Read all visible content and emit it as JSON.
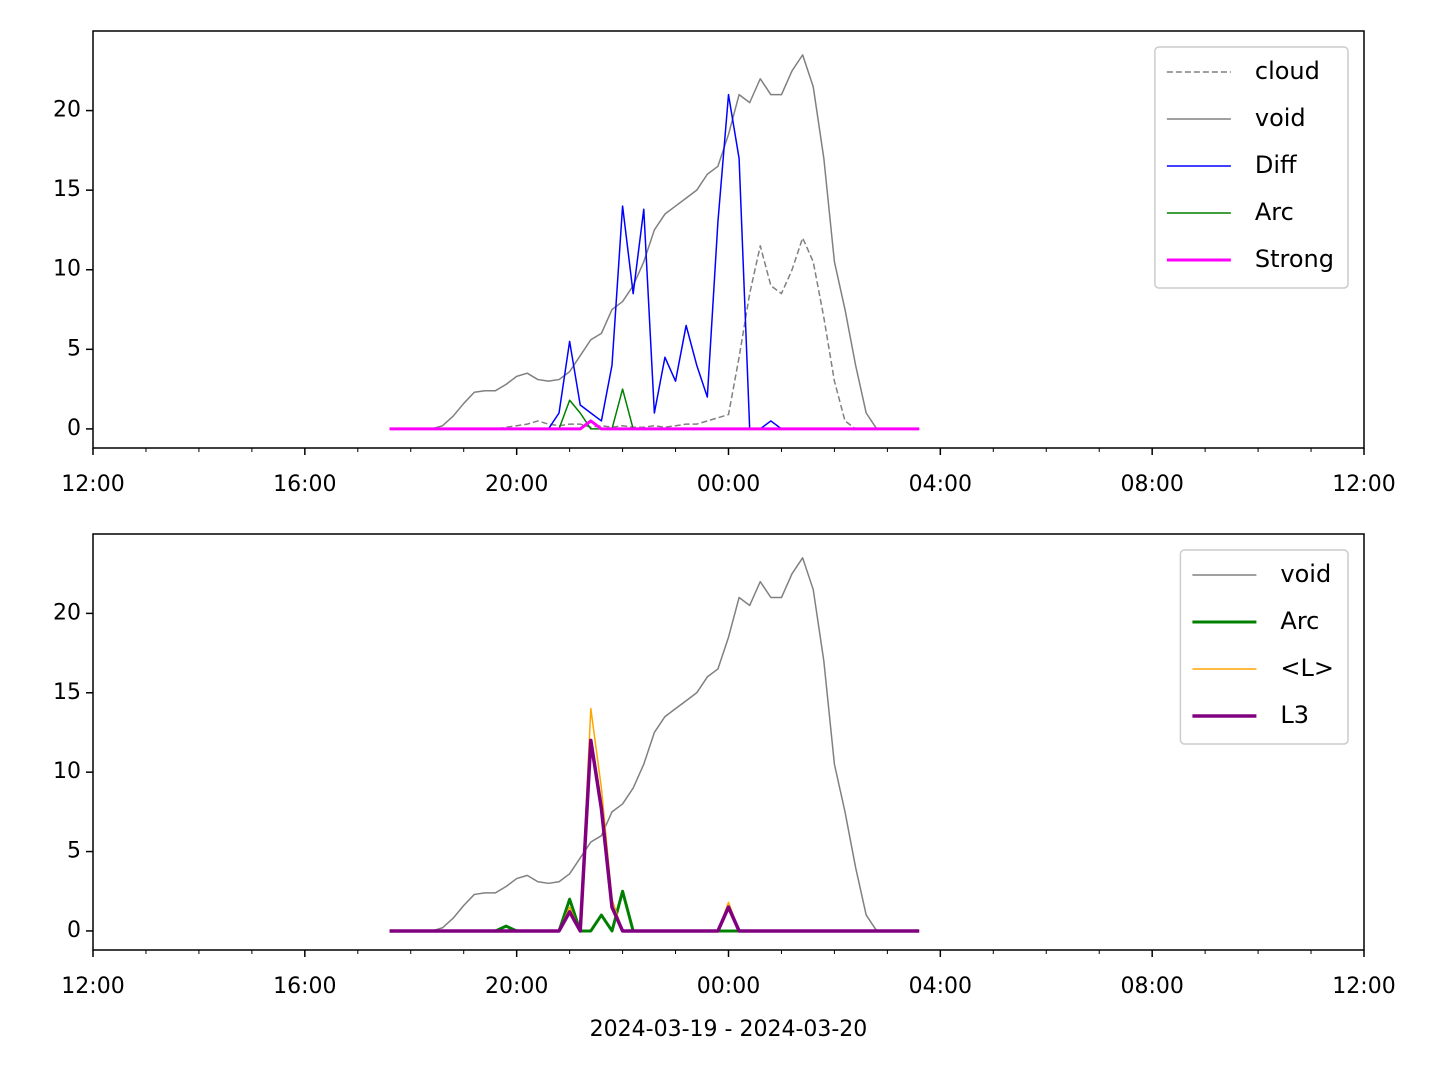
{
  "chart_data": [
    {
      "type": "line",
      "legend": "upper right",
      "grid": false,
      "x": [
        5.6,
        5.8,
        6.0,
        6.2,
        6.4,
        6.6,
        6.8,
        7.0,
        7.2,
        7.4,
        7.6,
        7.8,
        8.0,
        8.2,
        8.4,
        8.6,
        8.8,
        9.0,
        9.2,
        9.4,
        9.6,
        9.8,
        10.0,
        10.2,
        10.4,
        10.6,
        10.8,
        11.0,
        11.2,
        11.4,
        11.6,
        11.8,
        12.0,
        12.2,
        12.4,
        12.6,
        12.8,
        13.0,
        13.2,
        13.4,
        13.6,
        13.8,
        14.0,
        14.2,
        14.4,
        14.6,
        14.8,
        15.0,
        15.2,
        15.4,
        15.6
      ],
      "xlim": [
        0,
        24
      ],
      "xticks": [
        {
          "value": 0,
          "label": "12:00"
        },
        {
          "value": 4,
          "label": "16:00"
        },
        {
          "value": 8,
          "label": "20:00"
        },
        {
          "value": 12,
          "label": "00:00"
        },
        {
          "value": 16,
          "label": "04:00"
        },
        {
          "value": 20,
          "label": "08:00"
        },
        {
          "value": 24,
          "label": "12:00"
        }
      ],
      "xminorticks": [
        1,
        2,
        3,
        5,
        6,
        7,
        9,
        10,
        11,
        13,
        14,
        15,
        17,
        18,
        19,
        21,
        22,
        23
      ],
      "ylim": [
        -1.2,
        25
      ],
      "yticks": [
        0,
        5,
        10,
        15,
        20
      ],
      "series": [
        {
          "name": "cloud",
          "color": "#808080",
          "linewidth": 1.5,
          "dashed": true,
          "values": [
            0,
            0,
            0,
            0,
            0,
            0,
            0,
            0,
            0,
            0,
            0,
            0.1,
            0.2,
            0.3,
            0.5,
            0.3,
            0.2,
            0.3,
            0.3,
            0.1,
            0.2,
            0.1,
            0.2,
            0.1,
            0.1,
            0.2,
            0.1,
            0.2,
            0.3,
            0.3,
            0.5,
            0.7,
            0.9,
            4.5,
            8.5,
            11.5,
            9.0,
            8.5,
            10.0,
            12.0,
            10.5,
            7.0,
            3.0,
            0.5,
            0,
            0,
            0,
            0,
            0,
            0,
            0
          ]
        },
        {
          "name": "void",
          "color": "#808080",
          "linewidth": 1.5,
          "values": [
            0,
            0,
            0,
            0,
            0,
            0.2,
            0.8,
            1.6,
            2.3,
            2.4,
            2.4,
            2.8,
            3.3,
            3.5,
            3.1,
            3.0,
            3.1,
            3.6,
            4.6,
            5.6,
            6.0,
            7.5,
            8.0,
            9.0,
            10.5,
            12.5,
            13.5,
            14.0,
            14.5,
            15.0,
            16.0,
            16.5,
            18.5,
            21.0,
            20.5,
            22.0,
            21.0,
            21.0,
            22.5,
            23.5,
            21.5,
            17.0,
            10.5,
            7.5,
            4.0,
            1.0,
            0,
            0,
            0,
            0,
            0
          ]
        },
        {
          "name": "Diff",
          "color": "#0000ff",
          "linewidth": 1.5,
          "values": [
            0,
            0,
            0,
            0,
            0,
            0,
            0,
            0,
            0,
            0,
            0,
            0,
            0,
            0,
            0,
            0,
            1.0,
            5.5,
            1.5,
            1.0,
            0.5,
            4.0,
            14.0,
            8.5,
            13.8,
            1.0,
            4.5,
            3.0,
            6.5,
            4.0,
            2.0,
            13.0,
            21.0,
            17.0,
            0,
            0,
            0.5,
            0,
            0,
            0,
            0,
            0,
            0,
            0,
            0,
            0,
            0,
            0,
            0,
            0,
            0
          ]
        },
        {
          "name": "Arc",
          "color": "#008000",
          "linewidth": 1.5,
          "values": [
            0,
            0,
            0,
            0,
            0,
            0,
            0,
            0,
            0,
            0,
            0,
            0,
            0,
            0,
            0,
            0,
            0,
            1.8,
            1.0,
            0,
            0,
            0,
            2.5,
            0,
            0,
            0,
            0,
            0,
            0,
            0,
            0,
            0,
            0,
            0,
            0,
            0,
            0,
            0,
            0,
            0,
            0,
            0,
            0,
            0,
            0,
            0,
            0,
            0,
            0,
            0,
            0
          ]
        },
        {
          "name": "Strong",
          "color": "#ff00ff",
          "linewidth": 3,
          "values": [
            0,
            0,
            0,
            0,
            0,
            0,
            0,
            0,
            0,
            0,
            0,
            0,
            0,
            0,
            0,
            0,
            0,
            0,
            0,
            0.5,
            0,
            0,
            0,
            0,
            0,
            0,
            0,
            0,
            0,
            0,
            0,
            0,
            0,
            0,
            0,
            0,
            0,
            0,
            0,
            0,
            0,
            0,
            0,
            0,
            0,
            0,
            0,
            0,
            0,
            0,
            0
          ]
        }
      ]
    },
    {
      "type": "line",
      "legend": "upper right",
      "grid": false,
      "xlabel": "2024-03-19 - 2024-03-20",
      "x": [
        5.6,
        5.8,
        6.0,
        6.2,
        6.4,
        6.6,
        6.8,
        7.0,
        7.2,
        7.4,
        7.6,
        7.8,
        8.0,
        8.2,
        8.4,
        8.6,
        8.8,
        9.0,
        9.2,
        9.4,
        9.6,
        9.8,
        10.0,
        10.2,
        10.4,
        10.6,
        10.8,
        11.0,
        11.2,
        11.4,
        11.6,
        11.8,
        12.0,
        12.2,
        12.4,
        12.6,
        12.8,
        13.0,
        13.2,
        13.4,
        13.6,
        13.8,
        14.0,
        14.2,
        14.4,
        14.6,
        14.8,
        15.0,
        15.2,
        15.4,
        15.6
      ],
      "xlim": [
        0,
        24
      ],
      "xticks": [
        {
          "value": 0,
          "label": "12:00"
        },
        {
          "value": 4,
          "label": "16:00"
        },
        {
          "value": 8,
          "label": "20:00"
        },
        {
          "value": 12,
          "label": "00:00"
        },
        {
          "value": 16,
          "label": "04:00"
        },
        {
          "value": 20,
          "label": "08:00"
        },
        {
          "value": 24,
          "label": "12:00"
        }
      ],
      "xminorticks": [
        1,
        2,
        3,
        5,
        6,
        7,
        9,
        10,
        11,
        13,
        14,
        15,
        17,
        18,
        19,
        21,
        22,
        23
      ],
      "ylim": [
        -1.2,
        25
      ],
      "yticks": [
        0,
        5,
        10,
        15,
        20
      ],
      "series": [
        {
          "name": "void",
          "color": "#808080",
          "linewidth": 1.5,
          "values": [
            0,
            0,
            0,
            0,
            0,
            0.2,
            0.8,
            1.6,
            2.3,
            2.4,
            2.4,
            2.8,
            3.3,
            3.5,
            3.1,
            3.0,
            3.1,
            3.6,
            4.6,
            5.6,
            6.0,
            7.5,
            8.0,
            9.0,
            10.5,
            12.5,
            13.5,
            14.0,
            14.5,
            15.0,
            16.0,
            16.5,
            18.5,
            21.0,
            20.5,
            22.0,
            21.0,
            21.0,
            22.5,
            23.5,
            21.5,
            17.0,
            10.5,
            7.5,
            4.0,
            1.0,
            0,
            0,
            0,
            0,
            0
          ]
        },
        {
          "name": "Arc",
          "color": "#008000",
          "linewidth": 3,
          "values": [
            0,
            0,
            0,
            0,
            0,
            0,
            0,
            0,
            0,
            0,
            0,
            0.3,
            0,
            0,
            0,
            0,
            0,
            2.0,
            0,
            0,
            1.0,
            0,
            2.5,
            0,
            0,
            0,
            0,
            0,
            0,
            0,
            0,
            0,
            0,
            0,
            0,
            0,
            0,
            0,
            0,
            0,
            0,
            0,
            0,
            0,
            0,
            0,
            0,
            0,
            0,
            0,
            0
          ]
        },
        {
          "name": "<L>",
          "color": "#ffa500",
          "linewidth": 1.5,
          "values": [
            0,
            0,
            0,
            0,
            0,
            0,
            0,
            0,
            0,
            0,
            0,
            0,
            0,
            0,
            0,
            0,
            0,
            1.5,
            0,
            14.0,
            9.0,
            2.0,
            0,
            0,
            0,
            0,
            0,
            0,
            0,
            0,
            0,
            0,
            1.8,
            0,
            0,
            0,
            0,
            0,
            0,
            0,
            0,
            0,
            0,
            0,
            0,
            0,
            0,
            0,
            0,
            0,
            0
          ]
        },
        {
          "name": "L3",
          "color": "#800080",
          "linewidth": 3.5,
          "values": [
            0,
            0,
            0,
            0,
            0,
            0,
            0,
            0,
            0,
            0,
            0,
            0,
            0,
            0,
            0,
            0,
            0,
            1.2,
            0,
            12.0,
            7.7,
            1.5,
            0,
            0,
            0,
            0,
            0,
            0,
            0,
            0,
            0,
            0,
            1.5,
            0,
            0,
            0,
            0,
            0,
            0,
            0,
            0,
            0,
            0,
            0,
            0,
            0,
            0,
            0,
            0,
            0,
            0
          ]
        }
      ]
    }
  ]
}
